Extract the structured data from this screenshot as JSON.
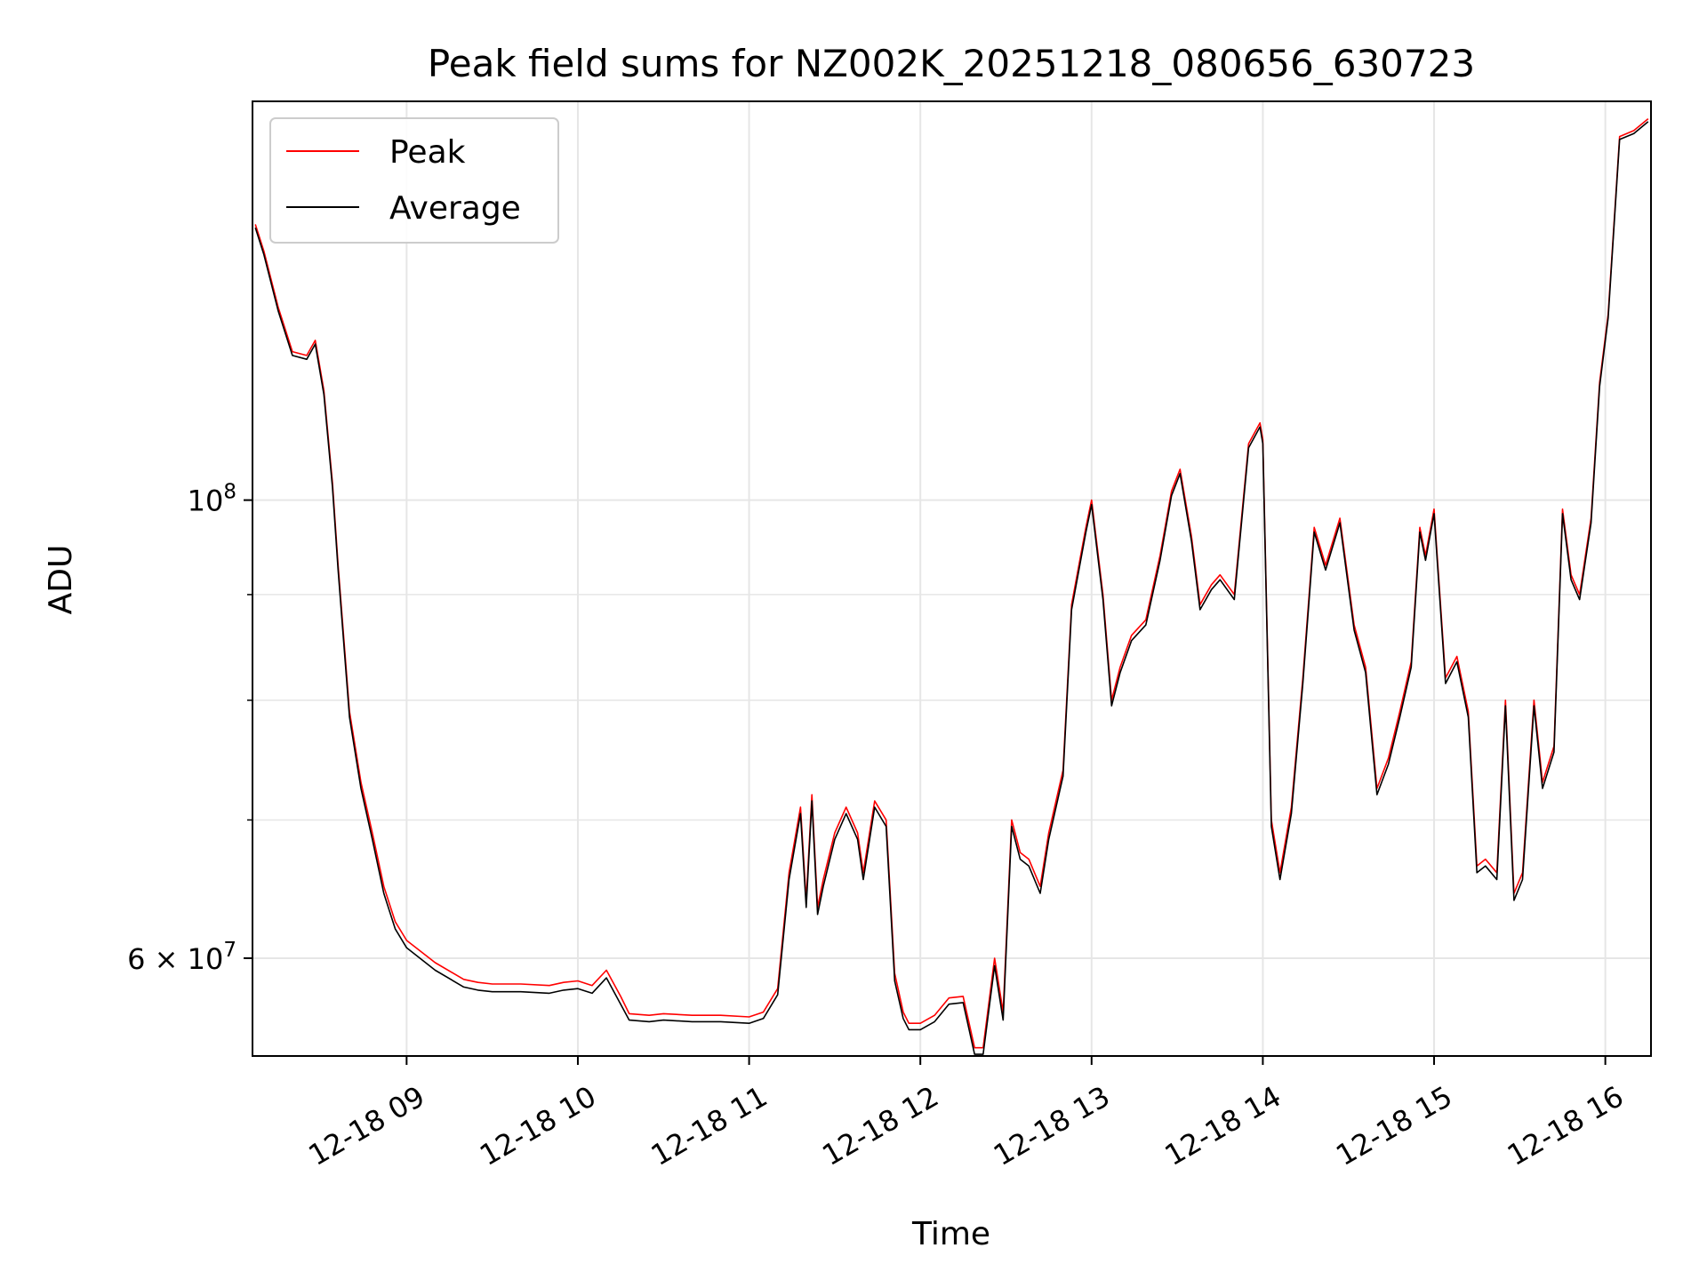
{
  "chart_data": {
    "type": "line",
    "title": "Peak field sums for NZ002K_20251218_080656_630723",
    "xlabel": "Time",
    "ylabel": "ADU",
    "yscale": "log",
    "grid": true,
    "legend_placement": "upper-left",
    "xlim": [
      "2025-12-18 08:06",
      "2025-12-18 16:16"
    ],
    "ylim": [
      53800000,
      156000000
    ],
    "x_ticks": [
      {
        "value": "2025-12-18 09:00",
        "label": "12-18 09"
      },
      {
        "value": "2025-12-18 10:00",
        "label": "12-18 10"
      },
      {
        "value": "2025-12-18 11:00",
        "label": "12-18 11"
      },
      {
        "value": "2025-12-18 12:00",
        "label": "12-18 12"
      },
      {
        "value": "2025-12-18 13:00",
        "label": "12-18 13"
      },
      {
        "value": "2025-12-18 14:00",
        "label": "12-18 14"
      },
      {
        "value": "2025-12-18 15:00",
        "label": "12-18 15"
      },
      {
        "value": "2025-12-18 16:00",
        "label": "12-18 16"
      }
    ],
    "y_major_ticks": [
      {
        "value": 60000000,
        "label_base": "6 × 10",
        "label_exp": "7"
      },
      {
        "value": 100000000,
        "label_base": "10",
        "label_exp": "8"
      }
    ],
    "y_minor_ticks": [
      70000000,
      80000000,
      90000000
    ],
    "series": [
      {
        "name": "Peak",
        "color": "#ff0000",
        "x": [
          "2025-12-18 08:07",
          "2025-12-18 08:10",
          "2025-12-18 08:15",
          "2025-12-18 08:20",
          "2025-12-18 08:25",
          "2025-12-18 08:28",
          "2025-12-18 08:31",
          "2025-12-18 08:34",
          "2025-12-18 08:36",
          "2025-12-18 08:40",
          "2025-12-18 08:44",
          "2025-12-18 08:48",
          "2025-12-18 08:52",
          "2025-12-18 08:56",
          "2025-12-18 09:00",
          "2025-12-18 09:10",
          "2025-12-18 09:20",
          "2025-12-18 09:25",
          "2025-12-18 09:30",
          "2025-12-18 09:40",
          "2025-12-18 09:50",
          "2025-12-18 09:55",
          "2025-12-18 10:00",
          "2025-12-18 10:05",
          "2025-12-18 10:10",
          "2025-12-18 10:15",
          "2025-12-18 10:18",
          "2025-12-18 10:25",
          "2025-12-18 10:30",
          "2025-12-18 10:40",
          "2025-12-18 10:50",
          "2025-12-18 11:00",
          "2025-12-18 11:05",
          "2025-12-18 11:10",
          "2025-12-18 11:14",
          "2025-12-18 11:18",
          "2025-12-18 11:20",
          "2025-12-18 11:22",
          "2025-12-18 11:24",
          "2025-12-18 11:26",
          "2025-12-18 11:30",
          "2025-12-18 11:34",
          "2025-12-18 11:38",
          "2025-12-18 11:40",
          "2025-12-18 11:44",
          "2025-12-18 11:48",
          "2025-12-18 11:51",
          "2025-12-18 11:54",
          "2025-12-18 11:56",
          "2025-12-18 12:00",
          "2025-12-18 12:05",
          "2025-12-18 12:10",
          "2025-12-18 12:15",
          "2025-12-18 12:19",
          "2025-12-18 12:22",
          "2025-12-18 12:26",
          "2025-12-18 12:29",
          "2025-12-18 12:32",
          "2025-12-18 12:35",
          "2025-12-18 12:38",
          "2025-12-18 12:42",
          "2025-12-18 12:45",
          "2025-12-18 12:50",
          "2025-12-18 12:53",
          "2025-12-18 12:58",
          "2025-12-18 13:00",
          "2025-12-18 13:04",
          "2025-12-18 13:07",
          "2025-12-18 13:10",
          "2025-12-18 13:14",
          "2025-12-18 13:19",
          "2025-12-18 13:24",
          "2025-12-18 13:28",
          "2025-12-18 13:31",
          "2025-12-18 13:35",
          "2025-12-18 13:38",
          "2025-12-18 13:42",
          "2025-12-18 13:45",
          "2025-12-18 13:50",
          "2025-12-18 13:55",
          "2025-12-18 13:59",
          "2025-12-18 14:00",
          "2025-12-18 14:03",
          "2025-12-18 14:06",
          "2025-12-18 14:10",
          "2025-12-18 14:14",
          "2025-12-18 14:18",
          "2025-12-18 14:22",
          "2025-12-18 14:27",
          "2025-12-18 14:32",
          "2025-12-18 14:36",
          "2025-12-18 14:40",
          "2025-12-18 14:44",
          "2025-12-18 14:48",
          "2025-12-18 14:52",
          "2025-12-18 14:55",
          "2025-12-18 14:57",
          "2025-12-18 15:00",
          "2025-12-18 15:04",
          "2025-12-18 15:08",
          "2025-12-18 15:12",
          "2025-12-18 15:15",
          "2025-12-18 15:18",
          "2025-12-18 15:22",
          "2025-12-18 15:25",
          "2025-12-18 15:28",
          "2025-12-18 15:31",
          "2025-12-18 15:35",
          "2025-12-18 15:38",
          "2025-12-18 15:42",
          "2025-12-18 15:45",
          "2025-12-18 15:48",
          "2025-12-18 15:51",
          "2025-12-18 15:55",
          "2025-12-18 15:58",
          "2025-12-18 16:01",
          "2025-12-18 16:05",
          "2025-12-18 16:10",
          "2025-12-18 16:15"
        ],
        "y": [
          136000000,
          132000000,
          124000000,
          118000000,
          117500000,
          119500000,
          113000000,
          102000000,
          93000000,
          79000000,
          73000000,
          69000000,
          65000000,
          62500000,
          61200000,
          59700000,
          58600000,
          58400000,
          58300000,
          58300000,
          58200000,
          58400000,
          58500000,
          58200000,
          59200000,
          57500000,
          56400000,
          56300000,
          56400000,
          56300000,
          56300000,
          56200000,
          56500000,
          58000000,
          66000000,
          71000000,
          64000000,
          72000000,
          63500000,
          65500000,
          69000000,
          71000000,
          69000000,
          66000000,
          71500000,
          70000000,
          59000000,
          56500000,
          55800000,
          55800000,
          56300000,
          57400000,
          57500000,
          54300000,
          54300000,
          60000000,
          56500000,
          70000000,
          67500000,
          67000000,
          65000000,
          69000000,
          74000000,
          89000000,
          97000000,
          100000000,
          90000000,
          80000000,
          83000000,
          86000000,
          87500000,
          94000000,
          101000000,
          103500000,
          96000000,
          89000000,
          91000000,
          92000000,
          90000000,
          106500000,
          109000000,
          107000000,
          70000000,
          66000000,
          71000000,
          82000000,
          97000000,
          93000000,
          98000000,
          87000000,
          83000000,
          72500000,
          75000000,
          79000000,
          83500000,
          97000000,
          94000000,
          99000000,
          82000000,
          84000000,
          79000000,
          66500000,
          67000000,
          66000000,
          80000000,
          64500000,
          66000000,
          80000000,
          73000000,
          76000000,
          99000000,
          92000000,
          90000000,
          98000000,
          114000000,
          123000000,
          150000000,
          151000000,
          153000000
        ]
      },
      {
        "name": "Average",
        "color": "#000000",
        "x": [
          "2025-12-18 08:07",
          "2025-12-18 08:10",
          "2025-12-18 08:15",
          "2025-12-18 08:20",
          "2025-12-18 08:25",
          "2025-12-18 08:28",
          "2025-12-18 08:31",
          "2025-12-18 08:34",
          "2025-12-18 08:36",
          "2025-12-18 08:40",
          "2025-12-18 08:44",
          "2025-12-18 08:48",
          "2025-12-18 08:52",
          "2025-12-18 08:56",
          "2025-12-18 09:00",
          "2025-12-18 09:10",
          "2025-12-18 09:20",
          "2025-12-18 09:25",
          "2025-12-18 09:30",
          "2025-12-18 09:40",
          "2025-12-18 09:50",
          "2025-12-18 09:55",
          "2025-12-18 10:00",
          "2025-12-18 10:05",
          "2025-12-18 10:10",
          "2025-12-18 10:15",
          "2025-12-18 10:18",
          "2025-12-18 10:25",
          "2025-12-18 10:30",
          "2025-12-18 10:40",
          "2025-12-18 10:50",
          "2025-12-18 11:00",
          "2025-12-18 11:05",
          "2025-12-18 11:10",
          "2025-12-18 11:14",
          "2025-12-18 11:18",
          "2025-12-18 11:20",
          "2025-12-18 11:22",
          "2025-12-18 11:24",
          "2025-12-18 11:26",
          "2025-12-18 11:30",
          "2025-12-18 11:34",
          "2025-12-18 11:38",
          "2025-12-18 11:40",
          "2025-12-18 11:44",
          "2025-12-18 11:48",
          "2025-12-18 11:51",
          "2025-12-18 11:54",
          "2025-12-18 11:56",
          "2025-12-18 12:00",
          "2025-12-18 12:05",
          "2025-12-18 12:10",
          "2025-12-18 12:15",
          "2025-12-18 12:19",
          "2025-12-18 12:22",
          "2025-12-18 12:26",
          "2025-12-18 12:29",
          "2025-12-18 12:32",
          "2025-12-18 12:35",
          "2025-12-18 12:38",
          "2025-12-18 12:42",
          "2025-12-18 12:45",
          "2025-12-18 12:50",
          "2025-12-18 12:53",
          "2025-12-18 12:58",
          "2025-12-18 13:00",
          "2025-12-18 13:04",
          "2025-12-18 13:07",
          "2025-12-18 13:10",
          "2025-12-18 13:14",
          "2025-12-18 13:19",
          "2025-12-18 13:24",
          "2025-12-18 13:28",
          "2025-12-18 13:31",
          "2025-12-18 13:35",
          "2025-12-18 13:38",
          "2025-12-18 13:42",
          "2025-12-18 13:45",
          "2025-12-18 13:50",
          "2025-12-18 13:55",
          "2025-12-18 13:59",
          "2025-12-18 14:00",
          "2025-12-18 14:03",
          "2025-12-18 14:06",
          "2025-12-18 14:10",
          "2025-12-18 14:14",
          "2025-12-18 14:18",
          "2025-12-18 14:22",
          "2025-12-18 14:27",
          "2025-12-18 14:32",
          "2025-12-18 14:36",
          "2025-12-18 14:40",
          "2025-12-18 14:44",
          "2025-12-18 14:48",
          "2025-12-18 14:52",
          "2025-12-18 14:55",
          "2025-12-18 14:57",
          "2025-12-18 15:00",
          "2025-12-18 15:04",
          "2025-12-18 15:08",
          "2025-12-18 15:12",
          "2025-12-18 15:15",
          "2025-12-18 15:18",
          "2025-12-18 15:22",
          "2025-12-18 15:25",
          "2025-12-18 15:28",
          "2025-12-18 15:31",
          "2025-12-18 15:35",
          "2025-12-18 15:38",
          "2025-12-18 15:42",
          "2025-12-18 15:45",
          "2025-12-18 15:48",
          "2025-12-18 15:51",
          "2025-12-18 15:55",
          "2025-12-18 15:58",
          "2025-12-18 16:01",
          "2025-12-18 16:05",
          "2025-12-18 16:10",
          "2025-12-18 16:15"
        ],
        "y": [
          135500000,
          131500000,
          123500000,
          117500000,
          117000000,
          119000000,
          112500000,
          101500000,
          92500000,
          78500000,
          72500000,
          68500000,
          64500000,
          62000000,
          60700000,
          59200000,
          58100000,
          57900000,
          57800000,
          57800000,
          57700000,
          57900000,
          58000000,
          57700000,
          58700000,
          57000000,
          56000000,
          55900000,
          56000000,
          55900000,
          55900000,
          55800000,
          56100000,
          57600000,
          65500000,
          70500000,
          63500000,
          71500000,
          63000000,
          65000000,
          68500000,
          70500000,
          68500000,
          65500000,
          71000000,
          69500000,
          58500000,
          56100000,
          55400000,
          55400000,
          55900000,
          57000000,
          57100000,
          53900000,
          53900000,
          59500000,
          56000000,
          69500000,
          67000000,
          66500000,
          64500000,
          68500000,
          73500000,
          88500000,
          96500000,
          99500000,
          89500000,
          79500000,
          82500000,
          85500000,
          87000000,
          93500000,
          100500000,
          103000000,
          95500000,
          88500000,
          90500000,
          91500000,
          89500000,
          106000000,
          108500000,
          106500000,
          69500000,
          65500000,
          70500000,
          81500000,
          96500000,
          92500000,
          97500000,
          86500000,
          82500000,
          72000000,
          74500000,
          78500000,
          83000000,
          96500000,
          93500000,
          98500000,
          81500000,
          83500000,
          78500000,
          66000000,
          66500000,
          65500000,
          79500000,
          64000000,
          65500000,
          79500000,
          72500000,
          75500000,
          98500000,
          91500000,
          89500000,
          97500000,
          113500000,
          122500000,
          149500000,
          150500000,
          152500000
        ]
      }
    ]
  }
}
